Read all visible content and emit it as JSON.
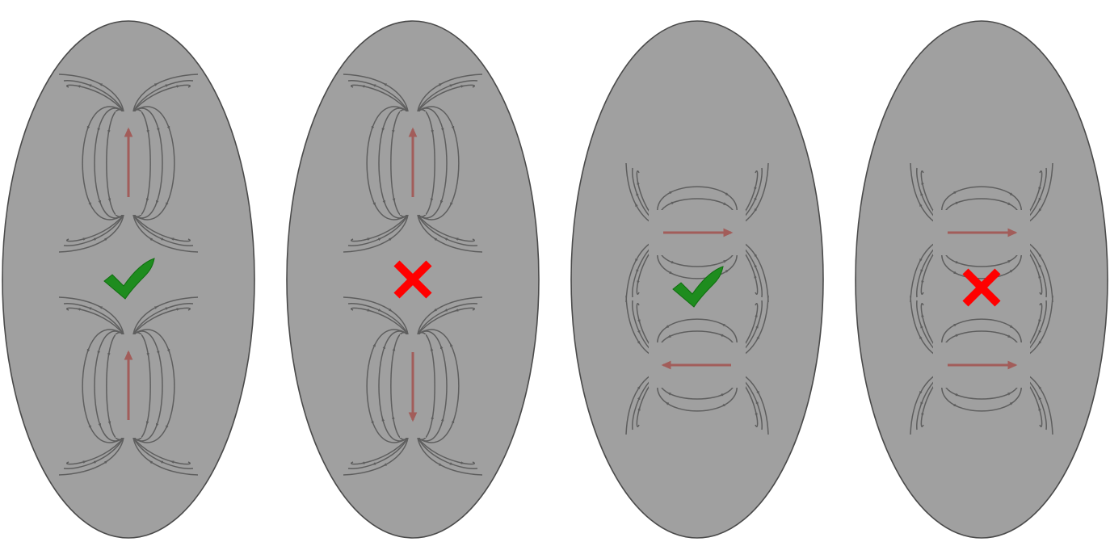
{
  "colors": {
    "background": "#ffffff",
    "body_fill": "#a0a0a0",
    "body_outline": "#4a4a4a",
    "field_line": "#5e5e5e",
    "moment_arrow": "#a25d5a",
    "check_mark": "#1e8c1e",
    "cross_mark": "#ff0000"
  },
  "panels": [
    {
      "orientation": "vertical",
      "moments": [
        "up",
        "up"
      ],
      "result": "check-icon"
    },
    {
      "orientation": "vertical",
      "moments": [
        "up",
        "down"
      ],
      "result": "cross-icon"
    },
    {
      "orientation": "horizontal",
      "moments": [
        "right",
        "left"
      ],
      "result": "check-icon"
    },
    {
      "orientation": "horizontal",
      "moments": [
        "right",
        "right"
      ],
      "result": "cross-icon"
    }
  ]
}
